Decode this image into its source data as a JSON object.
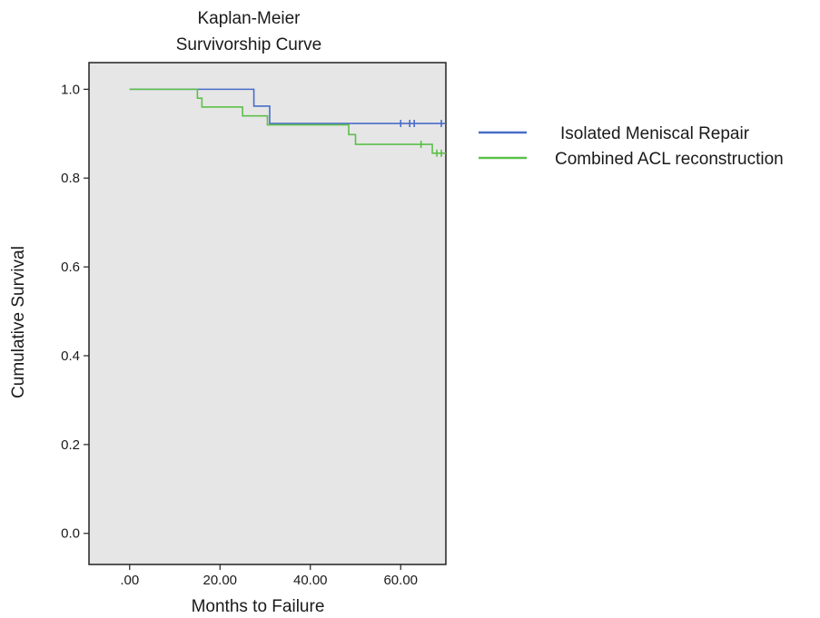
{
  "chart_data": {
    "type": "line",
    "title_lines": [
      "Kaplan-Meier",
      "Survivorship Curve"
    ],
    "xlabel": "Months to Failure",
    "ylabel": "Cumulative Survival",
    "xlim": [
      -9,
      70
    ],
    "ylim": [
      -0.07,
      1.06
    ],
    "x_ticks": [
      0,
      20,
      40,
      60
    ],
    "x_tick_labels": [
      ".00",
      "20.00",
      "40.00",
      "60.00"
    ],
    "y_ticks": [
      0,
      0.2,
      0.4,
      0.6,
      0.8,
      1.0
    ],
    "y_tick_labels": [
      "0.0",
      "0.2",
      "0.4",
      "0.6",
      "0.8",
      "1.0"
    ],
    "grid": false,
    "legend_position": "right",
    "plot_background": "#e6e6e6",
    "series": [
      {
        "name": "Isolated Meniscal Repair",
        "color": "#4a6cc8",
        "steps": [
          [
            0,
            1.0
          ],
          [
            27.5,
            0.962
          ],
          [
            31,
            0.923
          ],
          [
            70,
            0.923
          ]
        ],
        "censored": [
          [
            60,
            0.923
          ],
          [
            62,
            0.923
          ],
          [
            63,
            0.923
          ],
          [
            69,
            0.923
          ]
        ]
      },
      {
        "name": "Combined ACL reconstruction",
        "color": "#5cbf4a",
        "steps": [
          [
            0,
            1.0
          ],
          [
            15,
            0.98
          ],
          [
            16,
            0.96
          ],
          [
            25,
            0.94
          ],
          [
            30.5,
            0.92
          ],
          [
            48.5,
            0.898
          ],
          [
            50,
            0.876
          ],
          [
            67,
            0.856
          ],
          [
            70,
            0.856
          ]
        ],
        "censored": [
          [
            64.5,
            0.876
          ],
          [
            68,
            0.856
          ],
          [
            69,
            0.856
          ]
        ]
      }
    ]
  }
}
